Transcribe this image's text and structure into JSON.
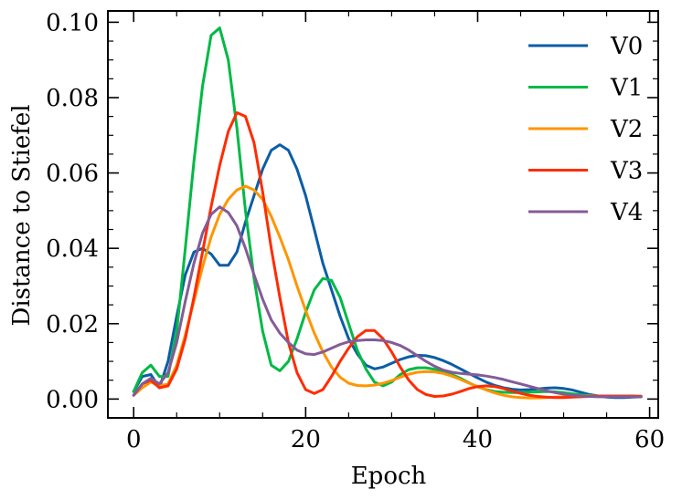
{
  "chart_data": {
    "type": "line",
    "title": "",
    "xlabel": "Epoch",
    "ylabel": "Distance to Stiefel",
    "xlim": [
      -3,
      61
    ],
    "ylim": [
      -0.005,
      0.103
    ],
    "xticks": [
      0,
      20,
      40,
      60
    ],
    "xtick_labels": [
      "0",
      "20",
      "40",
      "60"
    ],
    "yticks": [
      0.0,
      0.02,
      0.04,
      0.06,
      0.08,
      0.1
    ],
    "ytick_labels": [
      "0.00",
      "0.02",
      "0.04",
      "0.06",
      "0.08",
      "0.10"
    ],
    "grid": false,
    "legend_position": "top-right",
    "series": [
      {
        "name": "V0",
        "color": "#0C5DA5",
        "x": [
          0,
          1,
          2,
          3,
          4,
          5,
          6,
          7,
          8,
          9,
          10,
          11,
          12,
          13,
          14,
          15,
          16,
          17,
          18,
          19,
          20,
          21,
          22,
          23,
          24,
          25,
          26,
          27,
          28,
          29,
          30,
          31,
          32,
          33,
          34,
          35,
          36,
          37,
          38,
          39,
          40,
          41,
          42,
          43,
          44,
          45,
          46,
          47,
          48,
          49,
          50,
          51,
          52,
          53,
          54,
          55,
          56,
          57,
          58,
          59
        ],
        "y": [
          0.002,
          0.006,
          0.0065,
          0.003,
          0.01,
          0.022,
          0.033,
          0.039,
          0.04,
          0.0385,
          0.0355,
          0.0355,
          0.039,
          0.047,
          0.054,
          0.061,
          0.066,
          0.0675,
          0.066,
          0.061,
          0.054,
          0.045,
          0.036,
          0.029,
          0.022,
          0.016,
          0.012,
          0.009,
          0.008,
          0.0085,
          0.0095,
          0.0105,
          0.0112,
          0.0116,
          0.0115,
          0.011,
          0.0102,
          0.0092,
          0.008,
          0.0068,
          0.0056,
          0.0045,
          0.0036,
          0.003,
          0.0026,
          0.0024,
          0.0025,
          0.0027,
          0.0029,
          0.003,
          0.0028,
          0.0024,
          0.0018,
          0.0012,
          0.0008,
          0.0005,
          0.0004,
          0.0004,
          0.0005,
          0.0006
        ]
      },
      {
        "name": "V1",
        "color": "#00B945",
        "x": [
          0,
          1,
          2,
          3,
          4,
          5,
          6,
          7,
          8,
          9,
          10,
          11,
          12,
          13,
          14,
          15,
          16,
          17,
          18,
          19,
          20,
          21,
          22,
          23,
          24,
          25,
          26,
          27,
          28,
          29,
          30,
          31,
          32,
          33,
          34,
          35,
          36,
          37,
          38,
          39,
          40,
          41,
          42,
          43,
          44,
          45,
          46,
          47,
          48,
          49,
          50,
          51,
          52,
          53,
          54,
          55,
          56,
          57,
          58,
          59
        ],
        "y": [
          0.002,
          0.007,
          0.009,
          0.006,
          0.006,
          0.018,
          0.04,
          0.063,
          0.083,
          0.0965,
          0.0985,
          0.09,
          0.072,
          0.05,
          0.032,
          0.018,
          0.009,
          0.0075,
          0.01,
          0.016,
          0.023,
          0.029,
          0.032,
          0.0315,
          0.027,
          0.02,
          0.013,
          0.008,
          0.0045,
          0.0035,
          0.0045,
          0.0065,
          0.0078,
          0.0083,
          0.0083,
          0.0079,
          0.0073,
          0.0065,
          0.0055,
          0.0043,
          0.0032,
          0.0025,
          0.002,
          0.0018,
          0.0017,
          0.0017,
          0.0018,
          0.0019,
          0.002,
          0.0019,
          0.0017,
          0.0014,
          0.0011,
          0.0009,
          0.0008,
          0.0007,
          0.0007,
          0.0007,
          0.0007,
          0.0007
        ]
      },
      {
        "name": "V2",
        "color": "#FF9500",
        "x": [
          0,
          1,
          2,
          3,
          4,
          5,
          6,
          7,
          8,
          9,
          10,
          11,
          12,
          13,
          14,
          15,
          16,
          17,
          18,
          19,
          20,
          21,
          22,
          23,
          24,
          25,
          26,
          27,
          28,
          29,
          30,
          31,
          32,
          33,
          34,
          35,
          36,
          37,
          38,
          39,
          40,
          41,
          42,
          43,
          44,
          45,
          46,
          47,
          48,
          49,
          50,
          51,
          52,
          53,
          54,
          55,
          56,
          57,
          58,
          59
        ],
        "y": [
          0.001,
          0.003,
          0.0045,
          0.0035,
          0.004,
          0.009,
          0.017,
          0.026,
          0.035,
          0.043,
          0.049,
          0.053,
          0.0555,
          0.0565,
          0.0555,
          0.053,
          0.0485,
          0.043,
          0.037,
          0.03,
          0.0235,
          0.0175,
          0.0125,
          0.0085,
          0.0058,
          0.0042,
          0.0036,
          0.0035,
          0.0037,
          0.0042,
          0.0049,
          0.0058,
          0.0066,
          0.0071,
          0.0073,
          0.0072,
          0.0068,
          0.0061,
          0.0052,
          0.0042,
          0.0033,
          0.0024,
          0.0016,
          0.001,
          0.0006,
          0.0004,
          0.0003,
          0.0003,
          0.0004,
          0.0005,
          0.0006,
          0.0007,
          0.0008,
          0.0008,
          0.0008,
          0.0008,
          0.0008,
          0.0008,
          0.0008,
          0.0008
        ]
      },
      {
        "name": "V3",
        "color": "#FF2C00",
        "x": [
          0,
          1,
          2,
          3,
          4,
          5,
          6,
          7,
          8,
          9,
          10,
          11,
          12,
          13,
          14,
          15,
          16,
          17,
          18,
          19,
          20,
          21,
          22,
          23,
          24,
          25,
          26,
          27,
          28,
          29,
          30,
          31,
          32,
          33,
          34,
          35,
          36,
          37,
          38,
          39,
          40,
          41,
          42,
          43,
          44,
          45,
          46,
          47,
          48,
          49,
          50,
          51,
          52,
          53,
          54,
          55,
          56,
          57,
          58,
          59
        ],
        "y": [
          0.001,
          0.004,
          0.005,
          0.003,
          0.0035,
          0.008,
          0.016,
          0.027,
          0.039,
          0.051,
          0.062,
          0.071,
          0.076,
          0.075,
          0.068,
          0.055,
          0.04,
          0.027,
          0.015,
          0.007,
          0.0025,
          0.0015,
          0.0025,
          0.006,
          0.01,
          0.0135,
          0.0165,
          0.0182,
          0.0182,
          0.016,
          0.0125,
          0.0085,
          0.005,
          0.0025,
          0.0012,
          0.0007,
          0.0008,
          0.0013,
          0.002,
          0.0028,
          0.0033,
          0.0035,
          0.0033,
          0.0028,
          0.0021,
          0.0015,
          0.001,
          0.0007,
          0.0005,
          0.0004,
          0.0004,
          0.0005,
          0.0006,
          0.0007,
          0.0008,
          0.0008,
          0.0008,
          0.0008,
          0.0008,
          0.0007
        ]
      },
      {
        "name": "V4",
        "color": "#845B97",
        "x": [
          0,
          1,
          2,
          3,
          4,
          5,
          6,
          7,
          8,
          9,
          10,
          11,
          12,
          13,
          14,
          15,
          16,
          17,
          18,
          19,
          20,
          21,
          22,
          23,
          24,
          25,
          26,
          27,
          28,
          29,
          30,
          31,
          32,
          33,
          34,
          35,
          36,
          37,
          38,
          39,
          40,
          41,
          42,
          43,
          44,
          45,
          46,
          47,
          48,
          49,
          50,
          51,
          52,
          53,
          54,
          55,
          56,
          57,
          58,
          59
        ],
        "y": [
          0.001,
          0.004,
          0.0055,
          0.004,
          0.007,
          0.015,
          0.026,
          0.036,
          0.044,
          0.049,
          0.051,
          0.0495,
          0.046,
          0.04,
          0.033,
          0.0265,
          0.021,
          0.0175,
          0.015,
          0.013,
          0.012,
          0.0118,
          0.0125,
          0.0135,
          0.0145,
          0.0152,
          0.0155,
          0.0157,
          0.0157,
          0.0155,
          0.015,
          0.0142,
          0.013,
          0.0115,
          0.01,
          0.0087,
          0.0077,
          0.0071,
          0.0068,
          0.0066,
          0.0064,
          0.0061,
          0.0057,
          0.0052,
          0.0046,
          0.004,
          0.0034,
          0.0028,
          0.0022,
          0.0017,
          0.0013,
          0.001,
          0.0008,
          0.0007,
          0.0006,
          0.0006,
          0.0006,
          0.0006,
          0.0006,
          0.0006
        ]
      }
    ]
  }
}
